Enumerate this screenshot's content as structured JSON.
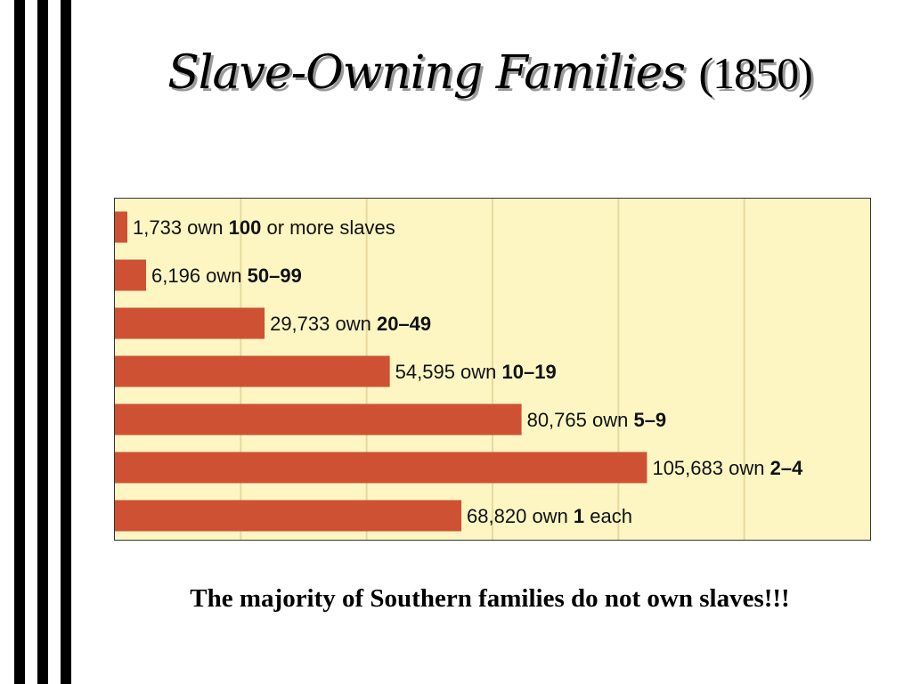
{
  "slide": {
    "title_main": "Slave-Owning Families",
    "title_year": "(1850)",
    "footer": "The majority of Southern families do not own slaves!!!"
  },
  "colors": {
    "bar": "#cf5133",
    "plot_background": "#fdf6c3",
    "gridline": "#e6d9a0",
    "stripes": "#000000"
  },
  "chart_data": {
    "type": "bar",
    "orientation": "horizontal",
    "title": "Slave-Owning Families (1850)",
    "categories": [
      "100 or more slaves",
      "50–99",
      "20–49",
      "10–19",
      "5–9",
      "2–4",
      "1 each"
    ],
    "values": [
      1733,
      6196,
      29733,
      54595,
      80765,
      105683,
      68820
    ],
    "bar_labels": [
      {
        "count": "1,733",
        "own": " own ",
        "bold": "100",
        "tail": " or more slaves"
      },
      {
        "count": "6,196",
        "own": " own ",
        "bold": "50–99",
        "tail": ""
      },
      {
        "count": "29,733",
        "own": " own ",
        "bold": "20–49",
        "tail": ""
      },
      {
        "count": "54,595",
        "own": " own ",
        "bold": "10–19",
        "tail": ""
      },
      {
        "count": "80,765",
        "own": " own ",
        "bold": "5–9",
        "tail": ""
      },
      {
        "count": "105,683",
        "own": " own ",
        "bold": "2–4",
        "tail": ""
      },
      {
        "count": "68,820",
        "own": " own ",
        "bold": "1",
        "tail": " each"
      }
    ],
    "xlim": [
      0,
      150000
    ],
    "grid": true,
    "grid_step": 25000,
    "xlabel": "",
    "ylabel": "",
    "legend": "none"
  }
}
